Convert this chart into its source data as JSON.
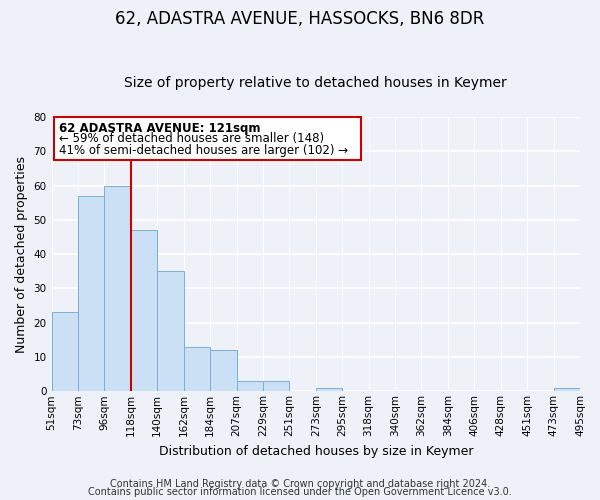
{
  "title1": "62, ADASTRA AVENUE, HASSOCKS, BN6 8DR",
  "title2": "Size of property relative to detached houses in Keymer",
  "xlabel": "Distribution of detached houses by size in Keymer",
  "ylabel": "Number of detached properties",
  "bar_values": [
    23,
    57,
    60,
    47,
    35,
    13,
    12,
    3,
    3,
    0,
    1,
    0,
    0,
    0,
    0,
    0,
    0,
    0,
    0,
    1
  ],
  "bar_labels": [
    "51sqm",
    "73sqm",
    "96sqm",
    "118sqm",
    "140sqm",
    "162sqm",
    "184sqm",
    "207sqm",
    "229sqm",
    "251sqm",
    "273sqm",
    "295sqm",
    "318sqm",
    "340sqm",
    "362sqm",
    "384sqm",
    "406sqm",
    "428sqm",
    "451sqm",
    "473sqm",
    "495sqm"
  ],
  "bar_color": "#cce0f5",
  "bar_edge_color": "#7ab0d4",
  "vline_color": "#cc0000",
  "annotation_lines": [
    "62 ADASTRA AVENUE: 121sqm",
    "← 59% of detached houses are smaller (148)",
    "41% of semi-detached houses are larger (102) →"
  ],
  "annotation_box_color": "#ffffff",
  "annotation_border_color": "#cc0000",
  "ylim": [
    0,
    80
  ],
  "yticks": [
    0,
    10,
    20,
    30,
    40,
    50,
    60,
    70,
    80
  ],
  "footer1": "Contains HM Land Registry data © Crown copyright and database right 2024.",
  "footer2": "Contains public sector information licensed under the Open Government Licence v3.0.",
  "bg_color": "#eef2f8",
  "plot_bg_color": "#eef2f8",
  "title1_fontsize": 12,
  "title2_fontsize": 10,
  "annot_fontsize": 8.5,
  "footer_fontsize": 7,
  "axis_label_fontsize": 9,
  "tick_fontsize": 7.5
}
